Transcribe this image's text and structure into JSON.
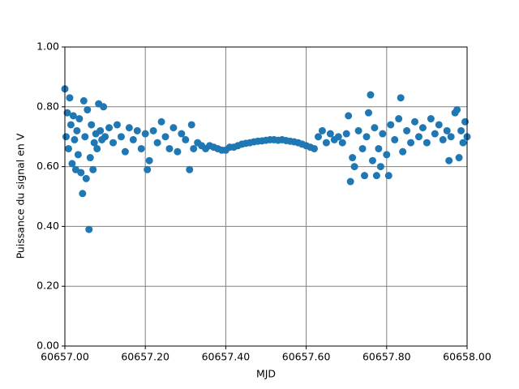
{
  "chart_data": {
    "type": "scatter",
    "x_label": "MJD",
    "y_label": "Puissance du signal en V",
    "color": "#1f77b4",
    "grid": true,
    "xlim": [
      60657.0,
      60658.0
    ],
    "xticks": [
      {
        "value": 60657.0,
        "label": "60657.00"
      },
      {
        "value": 60657.2,
        "label": "60657.20"
      },
      {
        "value": 60657.4,
        "label": "60657.40"
      },
      {
        "value": 60657.6,
        "label": "60657.60"
      },
      {
        "value": 60657.8,
        "label": "60657.80"
      },
      {
        "value": 60658.0,
        "label": "60658.00"
      }
    ],
    "ylim": [
      0,
      1
    ],
    "yticks": [
      {
        "value": 0,
        "label": "0.00"
      },
      {
        "value": 0.2,
        "label": "0.20"
      },
      {
        "value": 0.4,
        "label": "0.40"
      },
      {
        "value": 0.6,
        "label": "0.60"
      },
      {
        "value": 0.8,
        "label": "0.80"
      },
      {
        "value": 1,
        "label": "1.00"
      }
    ],
    "x": [
      60657.0,
      60657.003,
      60657.006,
      60657.009,
      60657.012,
      60657.015,
      60657.018,
      60657.021,
      60657.024,
      60657.027,
      60657.03,
      60657.033,
      60657.036,
      60657.04,
      60657.044,
      60657.047,
      60657.05,
      60657.053,
      60657.056,
      60657.06,
      60657.063,
      60657.066,
      60657.07,
      60657.073,
      60657.077,
      60657.08,
      60657.084,
      60657.088,
      60657.092,
      60657.096,
      60657.1,
      60657.11,
      60657.12,
      60657.13,
      60657.14,
      60657.15,
      60657.16,
      60657.17,
      60657.18,
      60657.19,
      60657.2,
      60657.205,
      60657.21,
      60657.22,
      60657.23,
      60657.24,
      60657.25,
      60657.26,
      60657.27,
      60657.28,
      60657.29,
      60657.3,
      60657.31,
      60657.315,
      60657.32,
      60657.33,
      60657.34,
      60657.35,
      60657.36,
      60657.37,
      60657.38,
      60657.39,
      60657.4,
      60657.41,
      60657.42,
      60657.43,
      60657.44,
      60657.45,
      60657.46,
      60657.47,
      60657.48,
      60657.49,
      60657.5,
      60657.51,
      60657.52,
      60657.53,
      60657.54,
      60657.55,
      60657.56,
      60657.57,
      60657.58,
      60657.59,
      60657.6,
      60657.61,
      60657.62,
      60657.63,
      60657.64,
      60657.65,
      60657.66,
      60657.67,
      60657.68,
      60657.69,
      60657.7,
      60657.705,
      60657.71,
      60657.715,
      60657.72,
      60657.73,
      60657.74,
      60657.745,
      60657.75,
      60657.755,
      60657.76,
      60657.765,
      60657.77,
      60657.775,
      60657.78,
      60657.785,
      60657.79,
      60657.8,
      60657.805,
      60657.81,
      60657.82,
      60657.83,
      60657.835,
      60657.84,
      60657.85,
      60657.86,
      60657.87,
      60657.88,
      60657.89,
      60657.9,
      60657.91,
      60657.92,
      60657.93,
      60657.94,
      60657.95,
      60657.955,
      60657.96,
      60657.97,
      60657.975,
      60657.98,
      60657.985,
      60657.99,
      60657.995,
      60658.0
    ],
    "values": [
      0.86,
      0.7,
      0.78,
      0.66,
      0.83,
      0.74,
      0.61,
      0.77,
      0.69,
      0.59,
      0.72,
      0.64,
      0.76,
      0.58,
      0.51,
      0.82,
      0.7,
      0.56,
      0.79,
      0.39,
      0.63,
      0.74,
      0.59,
      0.68,
      0.71,
      0.66,
      0.81,
      0.72,
      0.69,
      0.8,
      0.7,
      0.73,
      0.68,
      0.74,
      0.7,
      0.65,
      0.73,
      0.69,
      0.72,
      0.66,
      0.71,
      0.59,
      0.62,
      0.72,
      0.68,
      0.75,
      0.7,
      0.66,
      0.73,
      0.65,
      0.71,
      0.69,
      0.59,
      0.74,
      0.66,
      0.68,
      0.67,
      0.66,
      0.67,
      0.665,
      0.66,
      0.655,
      0.655,
      0.665,
      0.665,
      0.67,
      0.675,
      0.678,
      0.68,
      0.683,
      0.685,
      0.686,
      0.688,
      0.69,
      0.69,
      0.688,
      0.69,
      0.687,
      0.685,
      0.683,
      0.68,
      0.675,
      0.67,
      0.665,
      0.66,
      0.7,
      0.72,
      0.68,
      0.71,
      0.69,
      0.7,
      0.68,
      0.71,
      0.77,
      0.55,
      0.63,
      0.6,
      0.72,
      0.66,
      0.57,
      0.7,
      0.78,
      0.84,
      0.62,
      0.73,
      0.57,
      0.66,
      0.6,
      0.71,
      0.64,
      0.57,
      0.74,
      0.69,
      0.76,
      0.83,
      0.65,
      0.72,
      0.68,
      0.75,
      0.7,
      0.73,
      0.68,
      0.76,
      0.71,
      0.74,
      0.69,
      0.72,
      0.62,
      0.7,
      0.78,
      0.79,
      0.63,
      0.72,
      0.68,
      0.75,
      0.7
    ]
  }
}
